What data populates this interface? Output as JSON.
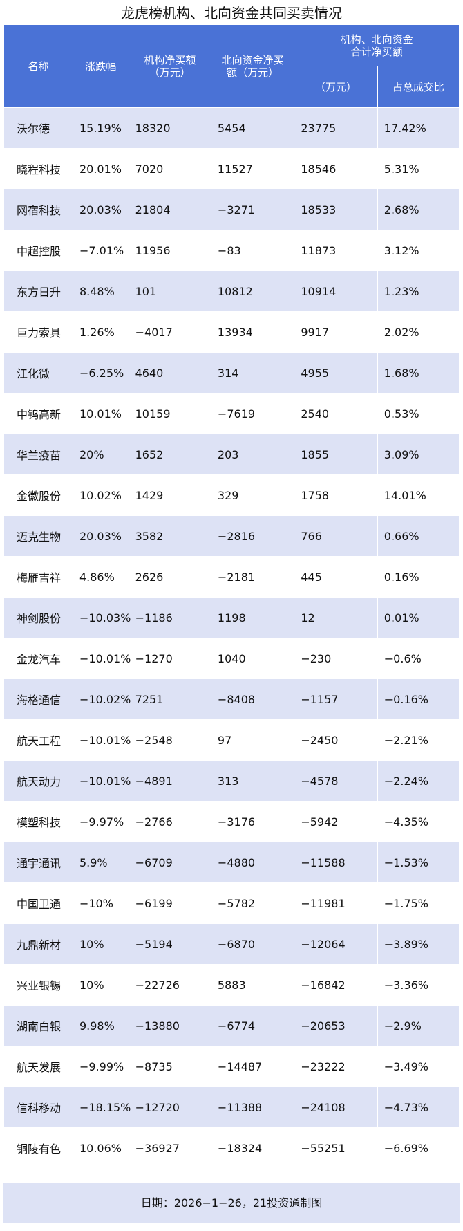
{
  "title": "龙虎榜机构、北向资金共同买卖情况",
  "headers": {
    "name": "名称",
    "change": "涨跌幅",
    "inst_line1": "机构净买额",
    "inst_line2": "（万元）",
    "north_line1": "北向资金净买",
    "north_line2": "额（万元）",
    "combined_line1": "机构、北向资金",
    "combined_line2": "合计净买额",
    "combined_unit": "（万元）",
    "ratio": "占总成交比"
  },
  "rows": [
    [
      "沃尔德",
      "15.19%",
      "18320",
      "5454",
      "23775",
      "17.42%"
    ],
    [
      "晓程科技",
      "20.01%",
      "7020",
      "11527",
      "18546",
      "5.31%"
    ],
    [
      "网宿科技",
      "20.03%",
      "21804",
      "−3271",
      "18533",
      "2.68%"
    ],
    [
      "中超控股",
      "−7.01%",
      "11956",
      "−83",
      "11873",
      "3.12%"
    ],
    [
      "东方日升",
      "8.48%",
      "101",
      "10812",
      "10914",
      "1.23%"
    ],
    [
      "巨力索具",
      "1.26%",
      "−4017",
      "13934",
      "9917",
      "2.02%"
    ],
    [
      "江化微",
      "−6.25%",
      "4640",
      "314",
      "4955",
      "1.68%"
    ],
    [
      "中钨高新",
      "10.01%",
      "10159",
      "−7619",
      "2540",
      "0.53%"
    ],
    [
      "华兰疫苗",
      "20%",
      "1652",
      "203",
      "1855",
      "3.09%"
    ],
    [
      "金徽股份",
      "10.02%",
      "1429",
      "329",
      "1758",
      "14.01%"
    ],
    [
      "迈克生物",
      "20.03%",
      "3582",
      "−2816",
      "766",
      "0.66%"
    ],
    [
      "梅雁吉祥",
      "4.86%",
      "2626",
      "−2181",
      "445",
      "0.16%"
    ],
    [
      "神剑股份",
      "−10.03%",
      "−1186",
      "1198",
      "12",
      "0.01%"
    ],
    [
      "金龙汽车",
      "−10.01%",
      "−1270",
      "1040",
      "−230",
      "−0.6%"
    ],
    [
      "海格通信",
      "−10.02%",
      "7251",
      "−8408",
      "−1157",
      "−0.16%"
    ],
    [
      "航天工程",
      "−10.01%",
      "−2548",
      "97",
      "−2450",
      "−2.21%"
    ],
    [
      "航天动力",
      "−10.01%",
      "−4891",
      "313",
      "−4578",
      "−2.24%"
    ],
    [
      "模塑科技",
      "−9.97%",
      "−2766",
      "−3176",
      "−5942",
      "−4.35%"
    ],
    [
      "通宇通讯",
      "5.9%",
      "−6709",
      "−4880",
      "−11588",
      "−1.53%"
    ],
    [
      "中国卫通",
      "−10%",
      "−6199",
      "−5782",
      "−11981",
      "−1.75%"
    ],
    [
      "九鼎新材",
      "10%",
      "−5194",
      "−6870",
      "−12064",
      "−3.89%"
    ],
    [
      "兴业银锡",
      "10%",
      "−22726",
      "5883",
      "−16842",
      "−3.36%"
    ],
    [
      "湖南白银",
      "9.98%",
      "−13880",
      "−6774",
      "−20653",
      "−2.9%"
    ],
    [
      "航天发展",
      "−9.99%",
      "−8735",
      "−14487",
      "−23222",
      "−3.49%"
    ],
    [
      "信科移动",
      "−18.15%",
      "−12720",
      "−11388",
      "−24108",
      "−4.73%"
    ],
    [
      "铜陵有色",
      "10.06%",
      "−36927",
      "−18324",
      "−55251",
      "−6.69%"
    ]
  ],
  "footer": "日期：2026−1−26，21投资通制图",
  "colors": {
    "header_bg": "#4a72d6",
    "stripe_bg": "#dde2f5",
    "row_bg": "#ffffff"
  }
}
